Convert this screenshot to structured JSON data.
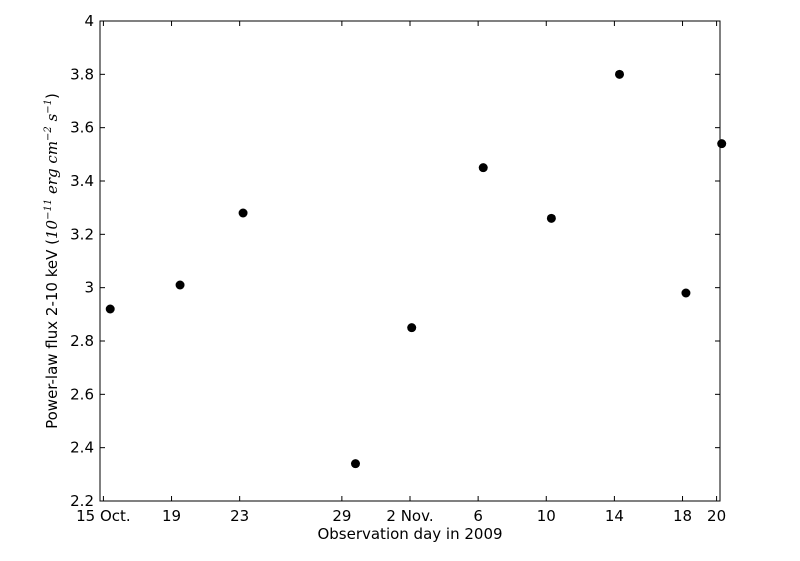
{
  "chart_data": {
    "type": "scatter",
    "xlabel": "Observation day in 2009",
    "ylabel": {
      "prefix": "Power-law flux 2-10 keV",
      "ten": "10",
      "exp_ten": "−11",
      "erg": "erg",
      "cm": "cm",
      "exp_cm": "−2",
      "s": "s",
      "exp_s": "−1"
    },
    "x_unit": "day (October 2009 numbering; 32 = 1 Nov.)",
    "xlim": [
      14.8,
      51.2
    ],
    "ylim": [
      2.2,
      4.0
    ],
    "grid": false,
    "xticks": [
      {
        "value": 15,
        "label": "15 Oct."
      },
      {
        "value": 19,
        "label": "19"
      },
      {
        "value": 23,
        "label": "23"
      },
      {
        "value": 29,
        "label": "29"
      },
      {
        "value": 33,
        "label": "2 Nov."
      },
      {
        "value": 37,
        "label": "6"
      },
      {
        "value": 41,
        "label": "10"
      },
      {
        "value": 45,
        "label": "14"
      },
      {
        "value": 49,
        "label": "18"
      },
      {
        "value": 51,
        "label": "20"
      }
    ],
    "yticks": [
      {
        "value": 2.2,
        "label": "2.2"
      },
      {
        "value": 2.4,
        "label": "2.4"
      },
      {
        "value": 2.6,
        "label": "2.6"
      },
      {
        "value": 2.8,
        "label": "2.8"
      },
      {
        "value": 3.0,
        "label": "3"
      },
      {
        "value": 3.2,
        "label": "3.2"
      },
      {
        "value": 3.4,
        "label": "3.4"
      },
      {
        "value": 3.6,
        "label": "3.6"
      },
      {
        "value": 3.8,
        "label": "3.8"
      },
      {
        "value": 4.0,
        "label": "4"
      }
    ],
    "points": [
      {
        "x": 15.4,
        "y": 2.92
      },
      {
        "x": 19.5,
        "y": 3.01
      },
      {
        "x": 23.2,
        "y": 3.28
      },
      {
        "x": 29.8,
        "y": 2.34
      },
      {
        "x": 33.1,
        "y": 2.85
      },
      {
        "x": 37.3,
        "y": 3.45
      },
      {
        "x": 41.3,
        "y": 3.26
      },
      {
        "x": 45.3,
        "y": 3.8
      },
      {
        "x": 49.2,
        "y": 2.98
      },
      {
        "x": 51.3,
        "y": 3.54
      }
    ],
    "marker_color": "#000000"
  }
}
